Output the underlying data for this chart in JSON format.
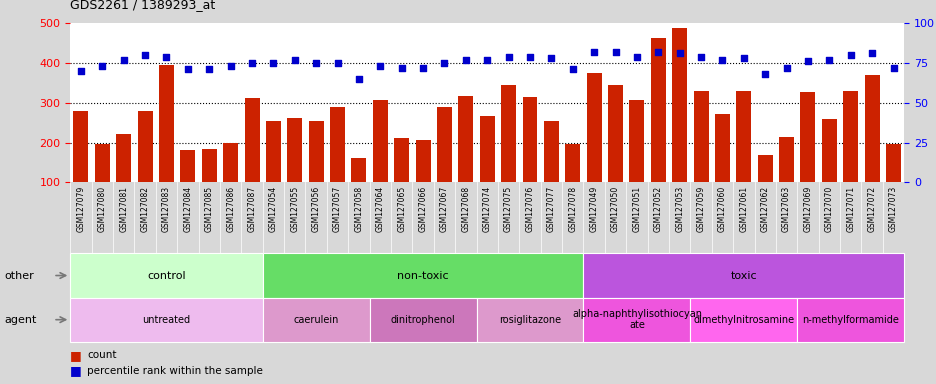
{
  "title": "GDS2261 / 1389293_at",
  "samples": [
    "GSM127079",
    "GSM127080",
    "GSM127081",
    "GSM127082",
    "GSM127083",
    "GSM127084",
    "GSM127085",
    "GSM127086",
    "GSM127087",
    "GSM127054",
    "GSM127055",
    "GSM127056",
    "GSM127057",
    "GSM127058",
    "GSM127064",
    "GSM127065",
    "GSM127066",
    "GSM127067",
    "GSM127068",
    "GSM127074",
    "GSM127075",
    "GSM127076",
    "GSM127077",
    "GSM127078",
    "GSM127049",
    "GSM127050",
    "GSM127051",
    "GSM127052",
    "GSM127053",
    "GSM127059",
    "GSM127060",
    "GSM127061",
    "GSM127062",
    "GSM127063",
    "GSM127069",
    "GSM127070",
    "GSM127071",
    "GSM127072",
    "GSM127073"
  ],
  "counts": [
    278,
    197,
    221,
    280,
    395,
    182,
    183,
    200,
    312,
    254,
    261,
    255,
    290,
    161,
    308,
    212,
    207,
    289,
    316,
    266,
    344,
    315,
    255,
    196,
    375,
    344,
    308,
    462,
    488,
    330,
    271,
    330,
    168,
    215,
    326,
    260,
    330,
    369,
    197
  ],
  "percentiles": [
    70,
    73,
    77,
    80,
    79,
    71,
    71,
    73,
    75,
    75,
    77,
    75,
    75,
    65,
    73,
    72,
    72,
    75,
    77,
    77,
    79,
    79,
    78,
    71,
    82,
    82,
    79,
    82,
    81,
    79,
    77,
    78,
    68,
    72,
    76,
    77,
    80,
    81,
    72
  ],
  "ylim_left": [
    100,
    500
  ],
  "ylim_right": [
    0,
    100
  ],
  "yticks_left": [
    100,
    200,
    300,
    400,
    500
  ],
  "yticks_right": [
    0,
    25,
    50,
    75,
    100
  ],
  "bar_color": "#cc2200",
  "dot_color": "#0000cc",
  "bg_color": "#d8d8d8",
  "plot_bg": "#ffffff",
  "xtick_bg": "#d0d0d0",
  "other_groups": [
    {
      "start": 0,
      "end": 9,
      "color": "#ccffcc",
      "label": "control"
    },
    {
      "start": 9,
      "end": 24,
      "color": "#66dd66",
      "label": "non-toxic"
    },
    {
      "start": 24,
      "end": 39,
      "color": "#bb55dd",
      "label": "toxic"
    }
  ],
  "agent_groups": [
    {
      "start": 0,
      "end": 9,
      "color": "#eebbee",
      "label": "untreated"
    },
    {
      "start": 9,
      "end": 14,
      "color": "#dd99cc",
      "label": "caerulein"
    },
    {
      "start": 14,
      "end": 19,
      "color": "#cc77bb",
      "label": "dinitrophenol"
    },
    {
      "start": 19,
      "end": 24,
      "color": "#dd99cc",
      "label": "rosiglitazone"
    },
    {
      "start": 24,
      "end": 29,
      "color": "#ee55dd",
      "label": "alpha-naphthylisothiocyan\nate"
    },
    {
      "start": 29,
      "end": 34,
      "color": "#ff66ee",
      "label": "dimethylnitrosamine"
    },
    {
      "start": 34,
      "end": 39,
      "color": "#ee55dd",
      "label": "n-methylformamide"
    }
  ]
}
